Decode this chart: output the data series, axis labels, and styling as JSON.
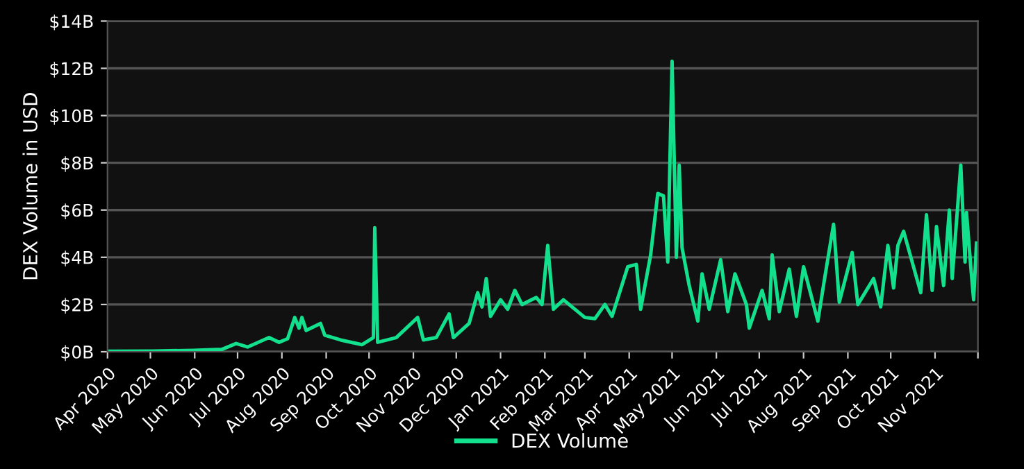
{
  "chart_data": {
    "type": "line",
    "ylabel": "DEX Volume in USD",
    "legend": "bottom",
    "grid": "y",
    "line_style": "solid",
    "marker": "none",
    "x": [
      "2020-04-01",
      "2020-05-03",
      "2020-05-31",
      "2020-06-20",
      "2020-06-30",
      "2020-07-08",
      "2020-07-23",
      "2020-07-30",
      "2020-08-05",
      "2020-08-10",
      "2020-08-13",
      "2020-08-15",
      "2020-08-18",
      "2020-08-28",
      "2020-08-31",
      "2020-09-11",
      "2020-09-26",
      "2020-10-04",
      "2020-10-05",
      "2020-10-07",
      "2020-10-20",
      "2020-11-04",
      "2020-11-08",
      "2020-11-17",
      "2020-11-26",
      "2020-11-29",
      "2020-12-10",
      "2020-12-16",
      "2020-12-19",
      "2020-12-22",
      "2020-12-25",
      "2021-01-01",
      "2021-01-06",
      "2021-01-11",
      "2021-01-16",
      "2021-01-26",
      "2021-01-30",
      "2021-02-03",
      "2021-02-07",
      "2021-02-14",
      "2021-03-01",
      "2021-03-08",
      "2021-03-15",
      "2021-03-20",
      "2021-03-31",
      "2021-04-06",
      "2021-04-09",
      "2021-04-16",
      "2021-04-21",
      "2021-04-25",
      "2021-04-28",
      "2021-05-01",
      "2021-05-04",
      "2021-05-06",
      "2021-05-08",
      "2021-05-13",
      "2021-05-19",
      "2021-05-22",
      "2021-05-27",
      "2021-06-04",
      "2021-06-09",
      "2021-06-14",
      "2021-06-22",
      "2021-06-24",
      "2021-07-03",
      "2021-07-08",
      "2021-07-10",
      "2021-07-15",
      "2021-07-22",
      "2021-07-27",
      "2021-08-01",
      "2021-08-11",
      "2021-08-16",
      "2021-08-22",
      "2021-08-26",
      "2021-09-04",
      "2021-09-08",
      "2021-09-19",
      "2021-09-24",
      "2021-09-29",
      "2021-10-03",
      "2021-10-06",
      "2021-10-10",
      "2021-10-22",
      "2021-10-26",
      "2021-10-30",
      "2021-11-02",
      "2021-11-07",
      "2021-11-11",
      "2021-11-13",
      "2021-11-19",
      "2021-11-22",
      "2021-11-23",
      "2021-11-26",
      "2021-11-28",
      "2021-11-30"
    ],
    "series": [
      {
        "name": "DEX Volume",
        "color": "#12e08c",
        "values": [
          0.02,
          0.03,
          0.06,
          0.1,
          0.35,
          0.2,
          0.6,
          0.4,
          0.55,
          1.45,
          1.0,
          1.45,
          0.9,
          1.2,
          0.7,
          0.5,
          0.3,
          0.6,
          5.25,
          0.4,
          0.6,
          1.45,
          0.5,
          0.6,
          1.6,
          0.6,
          1.2,
          2.5,
          1.9,
          3.1,
          1.5,
          2.2,
          1.8,
          2.6,
          2.0,
          2.3,
          2.0,
          4.5,
          1.8,
          2.2,
          1.45,
          1.4,
          2.0,
          1.5,
          3.6,
          3.7,
          1.8,
          4.1,
          6.7,
          6.6,
          3.8,
          12.3,
          4.0,
          7.9,
          4.4,
          2.8,
          1.3,
          3.3,
          1.8,
          3.9,
          1.7,
          3.3,
          2.0,
          1.0,
          2.6,
          1.4,
          4.1,
          1.7,
          3.5,
          1.5,
          3.6,
          1.3,
          3.2,
          5.4,
          2.1,
          4.2,
          2.0,
          3.1,
          1.9,
          4.5,
          2.7,
          4.5,
          5.1,
          2.5,
          5.8,
          2.6,
          5.3,
          2.8,
          6.0,
          3.1,
          7.9,
          3.8,
          5.9,
          3.6,
          2.2,
          4.6
        ]
      }
    ],
    "xlim": [
      "2020-04-01",
      "2021-12-01"
    ],
    "xticks": [
      {
        "value": "2020-04-01",
        "label": "Apr 2020"
      },
      {
        "value": "2020-05-01",
        "label": "May 2020"
      },
      {
        "value": "2020-06-01",
        "label": "Jun 2020"
      },
      {
        "value": "2020-07-01",
        "label": "Jul 2020"
      },
      {
        "value": "2020-08-01",
        "label": "Aug 2020"
      },
      {
        "value": "2020-09-01",
        "label": "Sep 2020"
      },
      {
        "value": "2020-10-01",
        "label": "Oct 2020"
      },
      {
        "value": "2020-11-01",
        "label": "Nov 2020"
      },
      {
        "value": "2020-12-01",
        "label": "Dec 2020"
      },
      {
        "value": "2021-01-01",
        "label": "Jan 2021"
      },
      {
        "value": "2021-02-01",
        "label": "Feb 2021"
      },
      {
        "value": "2021-03-01",
        "label": "Mar 2021"
      },
      {
        "value": "2021-04-01",
        "label": "Apr 2021"
      },
      {
        "value": "2021-05-01",
        "label": "May 2021"
      },
      {
        "value": "2021-06-01",
        "label": "Jun 2021"
      },
      {
        "value": "2021-07-01",
        "label": "Jul 2021"
      },
      {
        "value": "2021-08-01",
        "label": "Aug 2021"
      },
      {
        "value": "2021-09-01",
        "label": "Sep 2021"
      },
      {
        "value": "2021-10-01",
        "label": "Oct 2021"
      },
      {
        "value": "2021-11-01",
        "label": "Nov 2021"
      },
      {
        "value": "2021-12-01",
        "label": null
      }
    ],
    "ylim": [
      0,
      14
    ],
    "yticks": [
      {
        "value": 0,
        "label": "$0B"
      },
      {
        "value": 2,
        "label": "$2B"
      },
      {
        "value": 4,
        "label": "$4B"
      },
      {
        "value": 6,
        "label": "$6B"
      },
      {
        "value": 8,
        "label": "$8B"
      },
      {
        "value": 10,
        "label": "$10B"
      },
      {
        "value": 12,
        "label": "$12B"
      },
      {
        "value": 14,
        "label": "$14B"
      }
    ]
  }
}
